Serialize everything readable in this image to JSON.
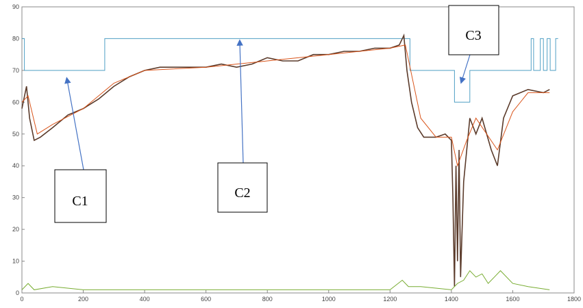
{
  "chart_data": {
    "type": "line",
    "xlim": [
      0,
      1800
    ],
    "xticks": [
      0,
      200,
      400,
      600,
      800,
      1000,
      1200,
      1400,
      1600,
      1800
    ],
    "ylim": [
      0,
      90
    ],
    "yticks": [
      0,
      10,
      20,
      30,
      40,
      50,
      60,
      70,
      80,
      90
    ],
    "annotations": [
      "C1",
      "C2",
      "C3"
    ],
    "series": [
      {
        "color": "#4f9fc4",
        "x": [
          0,
          8,
          8,
          270,
          270,
          1265,
          1265,
          1410,
          1410,
          1460,
          1460,
          1660,
          1660,
          1668,
          1668,
          1690,
          1690,
          1700,
          1700,
          1712,
          1712,
          1722,
          1722,
          1740,
          1740,
          1748
        ],
        "values": [
          80,
          80,
          70,
          70,
          80,
          80,
          70,
          70,
          60,
          60,
          70,
          70,
          80,
          80,
          70,
          70,
          80,
          80,
          70,
          70,
          80,
          80,
          70,
          70,
          80,
          80
        ]
      },
      {
        "color": "#5a3a2a",
        "x": [
          0,
          15,
          25,
          40,
          60,
          100,
          150,
          200,
          250,
          300,
          350,
          400,
          450,
          500,
          550,
          600,
          650,
          700,
          750,
          800,
          850,
          900,
          950,
          1000,
          1050,
          1100,
          1150,
          1200,
          1230,
          1245,
          1255,
          1270,
          1290,
          1310,
          1350,
          1380,
          1400,
          1405,
          1410,
          1415,
          1420,
          1425,
          1430,
          1440,
          1450,
          1460,
          1480,
          1500,
          1530,
          1550,
          1570,
          1600,
          1650,
          1700,
          1720
        ],
        "values": [
          58,
          65,
          55,
          48,
          49,
          52,
          56,
          58,
          61,
          65,
          68,
          70,
          71,
          71,
          71,
          71,
          72,
          71,
          72,
          74,
          73,
          73,
          75,
          75,
          76,
          76,
          77,
          77,
          78,
          81,
          70,
          60,
          52,
          49,
          49,
          50,
          48,
          30,
          2,
          40,
          10,
          45,
          5,
          35,
          45,
          55,
          50,
          55,
          45,
          40,
          55,
          62,
          64,
          63,
          64
        ]
      },
      {
        "color": "#d9541a",
        "x": [
          0,
          20,
          50,
          100,
          200,
          300,
          400,
          600,
          800,
          1000,
          1200,
          1250,
          1300,
          1350,
          1400,
          1420,
          1450,
          1480,
          1550,
          1600,
          1650,
          1720
        ],
        "values": [
          60,
          62,
          50,
          53,
          58,
          66,
          70,
          71,
          73,
          75,
          77,
          78,
          55,
          49,
          49,
          40,
          48,
          55,
          45,
          57,
          63,
          63
        ]
      },
      {
        "color": "#77ac30",
        "x": [
          0,
          20,
          40,
          100,
          200,
          400,
          600,
          800,
          1000,
          1200,
          1240,
          1260,
          1300,
          1400,
          1420,
          1440,
          1460,
          1480,
          1500,
          1520,
          1540,
          1560,
          1600,
          1650,
          1720
        ],
        "values": [
          1,
          3,
          1,
          2,
          1,
          1,
          1,
          1,
          1,
          1,
          4,
          2,
          2,
          1,
          3,
          4,
          7,
          5,
          6,
          3,
          5,
          7,
          3,
          2,
          1
        ]
      }
    ]
  }
}
